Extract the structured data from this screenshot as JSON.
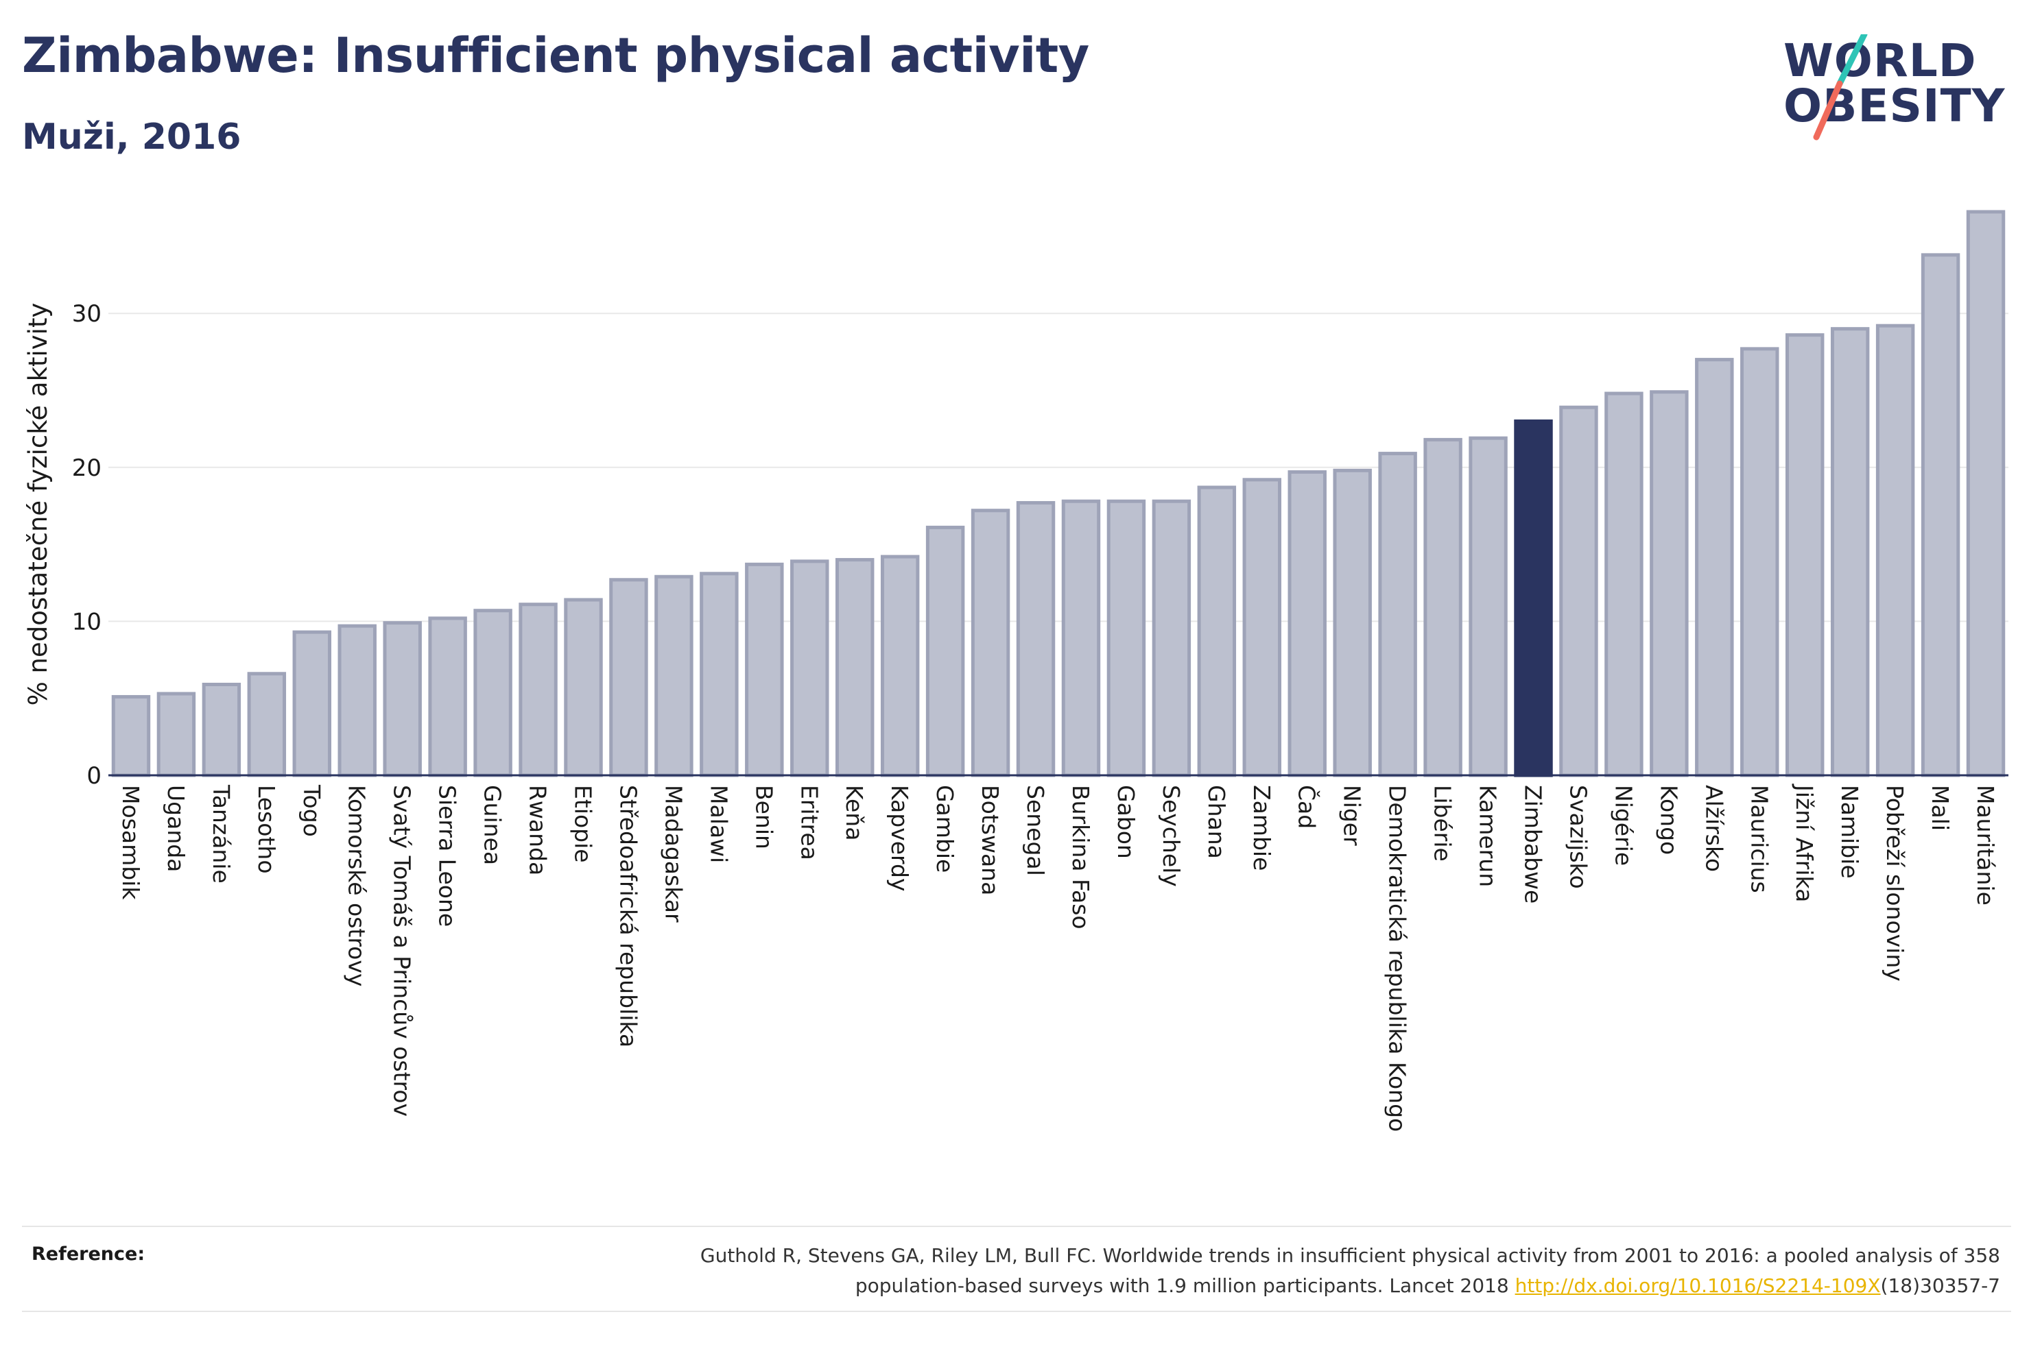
{
  "header": {
    "title": "Zimbabwe: Insufficient physical activity",
    "subtitle": "Muži, 2016"
  },
  "logo": {
    "line1": "WORLD",
    "line2": "OBESITY",
    "colors": {
      "text": "#2a3460",
      "slash_top": "#2ec4b6",
      "slash_bottom": "#f06a5b"
    }
  },
  "colors": {
    "bar": "#bcc0cf",
    "bar_border": "#9ea3b8",
    "highlight": "#2a3460",
    "grid": "#e8e8e8",
    "axis": "#2a3460"
  },
  "chart_data": {
    "type": "bar",
    "title": "",
    "xlabel": "",
    "ylabel": "% nedostatečné fyzické aktivity",
    "ylim": [
      0,
      37
    ],
    "yticks": [
      0,
      10,
      20,
      30
    ],
    "grid": true,
    "highlight": "Zimbabwe",
    "categories": [
      "Mosambik",
      "Uganda",
      "Tanzánie",
      "Lesotho",
      "Togo",
      "Komorské ostrovy",
      "Svatý Tomáš a Princův ostrov",
      "Sierra Leone",
      "Guinea",
      "Rwanda",
      "Etiopie",
      "Středoafrická republika",
      "Madagaskar",
      "Malawi",
      "Benin",
      "Eritrea",
      "Keňa",
      "Kapverdy",
      "Gambie",
      "Botswana",
      "Senegal",
      "Burkina Faso",
      "Gabon",
      "Seychely",
      "Ghana",
      "Zambie",
      "Čad",
      "Niger",
      "Demokratická republika Kongo",
      "Libérie",
      "Kamerun",
      "Zimbabwe",
      "Svazijsko",
      "Nigérie",
      "Kongo",
      "Alžírsko",
      "Mauricius",
      "Jižní Afrika",
      "Namibie",
      "Pobřeží slonoviny",
      "Mali",
      "Mauritánie"
    ],
    "values": [
      5.1,
      5.3,
      5.9,
      6.6,
      9.3,
      9.7,
      9.9,
      10.2,
      10.7,
      11.1,
      11.4,
      12.7,
      12.9,
      13.1,
      13.7,
      13.9,
      14.0,
      14.2,
      16.1,
      17.2,
      17.7,
      17.8,
      17.8,
      17.8,
      18.7,
      19.2,
      19.7,
      19.8,
      20.9,
      21.8,
      21.9,
      23.0,
      23.9,
      24.8,
      24.9,
      27.0,
      27.7,
      28.6,
      29.0,
      29.2,
      33.8,
      36.6
    ]
  },
  "reference": {
    "label": "Reference:",
    "line1": "Guthold R, Stevens GA, Riley LM, Bull FC. Worldwide trends in insufficient physical activity from 2001 to 2016: a pooled analysis of 358",
    "line2_before": "population-based surveys with 1.9 million participants. Lancet 2018 ",
    "link": "http://dx.doi.org/10.1016/S2214-109X",
    "line2_after": "(18)30357-7"
  }
}
